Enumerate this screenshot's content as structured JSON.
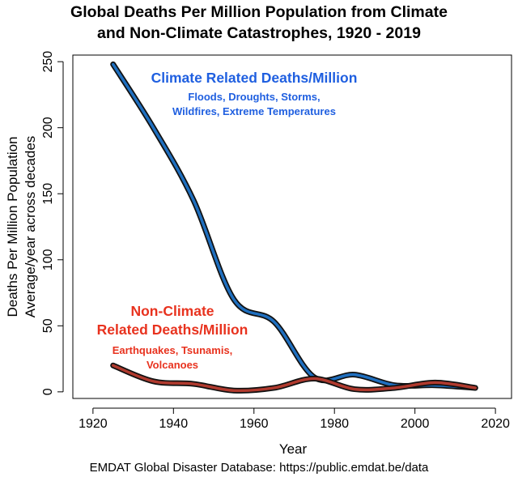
{
  "chart_data": {
    "type": "line",
    "title_line1": "Global Deaths Per Million Population from Climate",
    "title_line2": "and Non-Climate Catastrophes, 1920 - 2019",
    "xlabel": "Year",
    "ylabel_line1": "Deaths Per Million Population",
    "ylabel_line2": "Average/year across decades",
    "xlim": [
      1915,
      2024
    ],
    "ylim": [
      -5,
      255
    ],
    "xticks": [
      1920,
      1940,
      1960,
      1980,
      2000,
      2020
    ],
    "yticks": [
      0,
      50,
      100,
      150,
      200,
      250
    ],
    "grid": false,
    "series": [
      {
        "name": "Climate Related Deaths/Million",
        "color": "#1f6fbf",
        "x": [
          1925,
          1935,
          1945,
          1955,
          1965,
          1975,
          1985,
          1995,
          2005,
          2015
        ],
        "values": [
          248,
          200,
          145,
          70,
          53,
          11,
          13,
          5,
          5,
          3
        ]
      },
      {
        "name": "Non-Climate Related Deaths/Million",
        "color": "#b03a2e",
        "x": [
          1925,
          1935,
          1945,
          1955,
          1965,
          1975,
          1985,
          1995,
          2005,
          2015
        ],
        "values": [
          20,
          8,
          6,
          1,
          3,
          10,
          2,
          3,
          7,
          3
        ]
      }
    ],
    "annotations": {
      "climate_title": "Climate Related Deaths/Million",
      "climate_sub1": "Floods, Droughts, Storms,",
      "climate_sub2": "Wildfires, Extreme Temperatures",
      "climate_color": "#1f5fe0",
      "nonclimate_title1": "Non-Climate",
      "nonclimate_title2": "Related Deaths/Million",
      "nonclimate_sub1": "Earthquakes, Tsunamis,",
      "nonclimate_sub2": "Volcanoes",
      "nonclimate_color": "#e8321e"
    },
    "source": "EMDAT Global Disaster Database: https://public.emdat.be/data"
  }
}
